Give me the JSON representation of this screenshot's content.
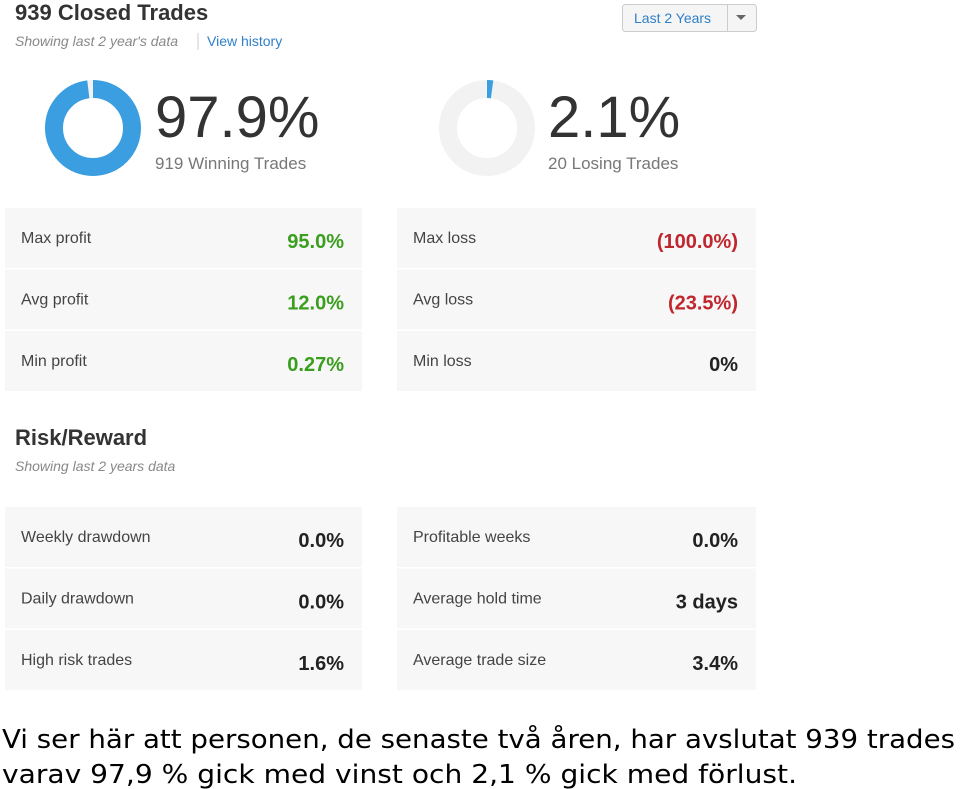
{
  "header": {
    "title": "939 Closed Trades",
    "subtitle": "Showing last 2 year's data",
    "link": "View history",
    "dropdown": "Last 2 Years"
  },
  "summary": [
    {
      "value": 97.9,
      "value_label": "97.9%",
      "caption": "919 Winning Trades"
    },
    {
      "value": 2.1,
      "value_label": "2.1%",
      "caption": "20 Losing Trades"
    }
  ],
  "profit_table": {
    "rows": [
      [
        "Max profit",
        "95.0%"
      ],
      [
        "Avg profit",
        "12.0%"
      ],
      [
        "Min profit",
        "0.27%"
      ]
    ]
  },
  "loss_table": {
    "rows": [
      [
        "Max loss",
        "(100.0%)"
      ],
      [
        "Avg loss",
        "(23.5%)"
      ],
      [
        "Min loss",
        "0%"
      ]
    ]
  },
  "risk": {
    "title": "Risk/Reward",
    "subtitle": "Showing last 2 years data"
  },
  "risk_left": {
    "rows": [
      [
        "Weekly drawdown",
        "0.0%"
      ],
      [
        "Daily drawdown",
        "0.0%"
      ],
      [
        "High risk trades",
        "1.6%"
      ]
    ]
  },
  "risk_right": {
    "rows": [
      [
        "Profitable weeks",
        "0.0%"
      ],
      [
        "Average hold time",
        "3 days"
      ],
      [
        "Average trade size",
        "3.4%"
      ]
    ]
  },
  "caption": {
    "lines": [
      "Vi ser här att personen, de senaste två åren, har avslutat 939 trades",
      "varav 97,9 % gick med vinst och 2,1 % gick med förlust."
    ]
  }
}
